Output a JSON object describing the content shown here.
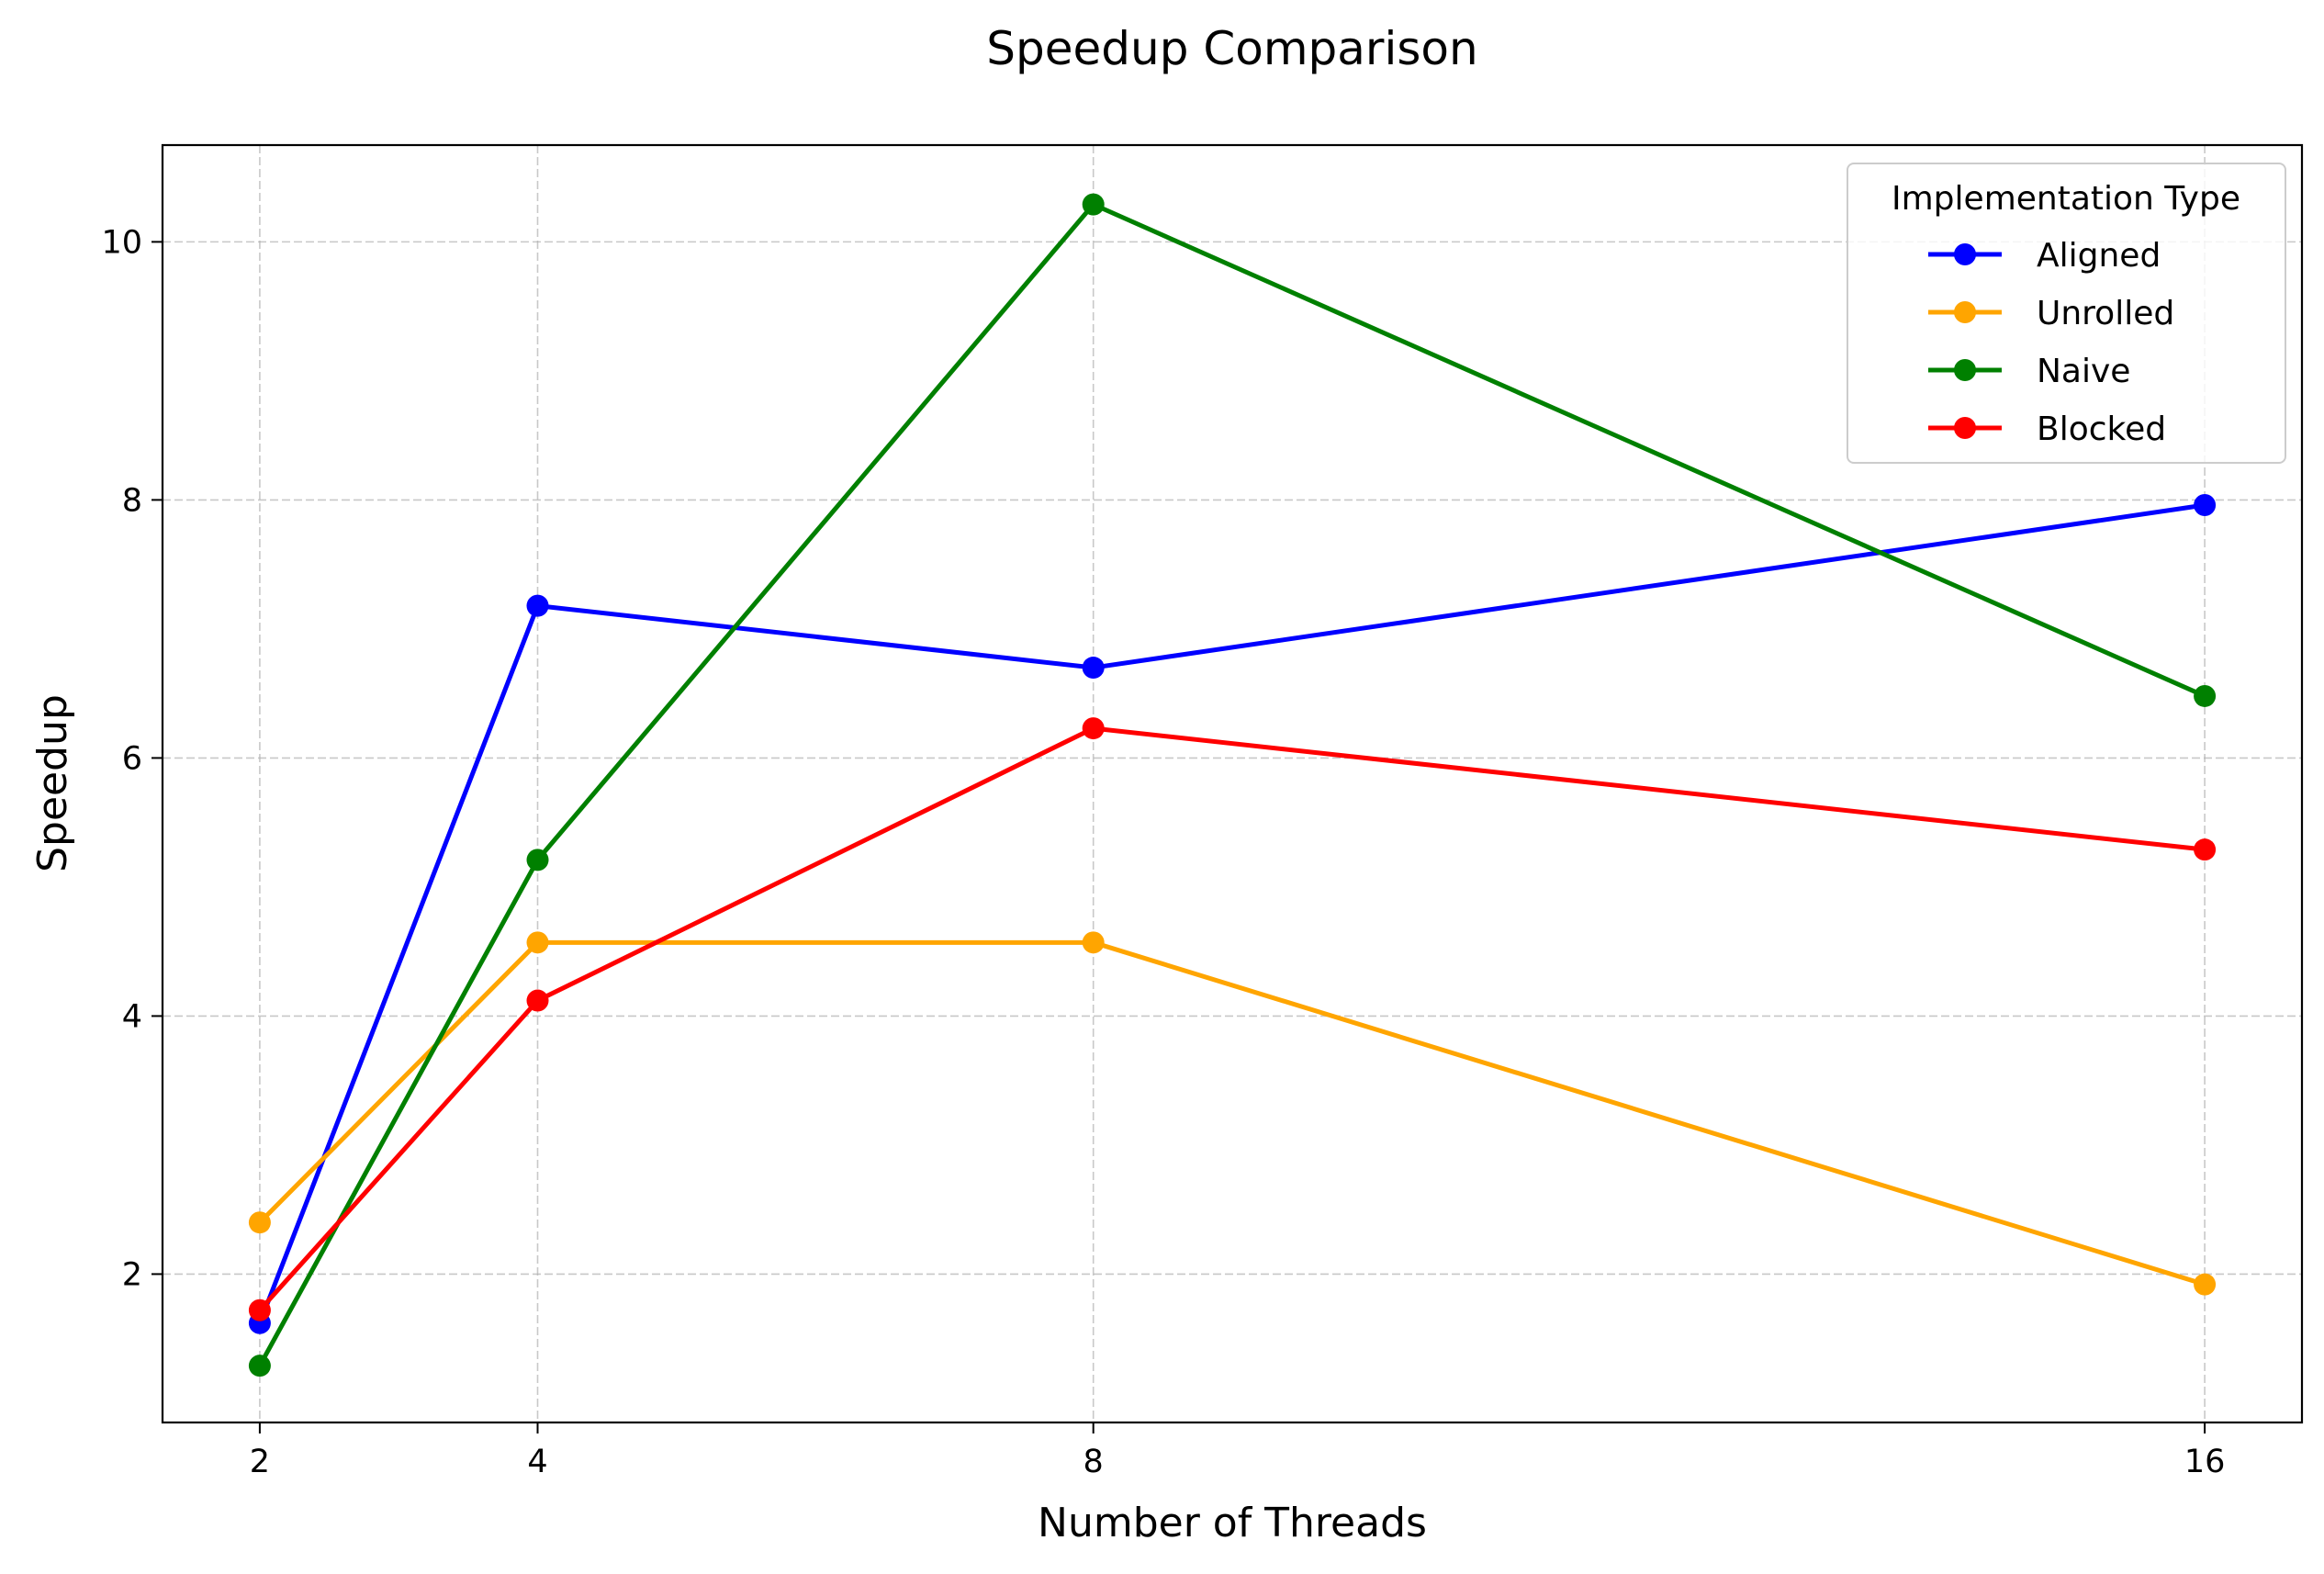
{
  "chart_data": {
    "type": "line",
    "title": "Speedup Comparison",
    "xlabel": "Number of Threads",
    "ylabel": "Speedup",
    "x": [
      2,
      4,
      8,
      16
    ],
    "xticks": [
      2,
      4,
      8,
      16
    ],
    "yticks": [
      2,
      4,
      6,
      8,
      10
    ],
    "xlim": [
      1.3,
      16.7
    ],
    "ylim": [
      0.85,
      10.75
    ],
    "grid": true,
    "grid_style": "dashed",
    "legend": {
      "title": "Implementation Type",
      "placement": "top-right"
    },
    "series": [
      {
        "name": "Aligned",
        "color": "#0000ff",
        "values": [
          1.62,
          7.18,
          6.7,
          7.96
        ]
      },
      {
        "name": "Unrolled",
        "color": "#ffa500",
        "values": [
          2.4,
          4.57,
          4.57,
          1.92
        ]
      },
      {
        "name": "Naive",
        "color": "#008000",
        "values": [
          1.29,
          5.21,
          10.29,
          6.48
        ]
      },
      {
        "name": "Blocked",
        "color": "#ff0000",
        "values": [
          1.72,
          4.12,
          6.23,
          5.29
        ]
      }
    ]
  }
}
